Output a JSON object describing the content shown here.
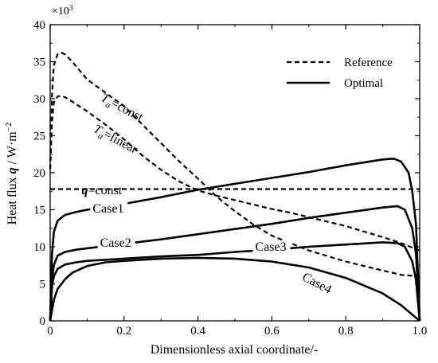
{
  "chart_data": {
    "type": "line",
    "xlabel": "Dimensionless axial coordinate/-",
    "ylabel_prefix": "Heat flux ",
    "ylabel_var": "q",
    "ylabel_suffix": " / W·m",
    "ylabel_exp": "−2",
    "y_multiplier_base": "×10",
    "y_multiplier_exp": "3",
    "xlim": [
      0,
      1
    ],
    "ylim": [
      0,
      40
    ],
    "x_ticks": [
      "0",
      "0.2",
      "0.4",
      "0.6",
      "0.8",
      "1.0"
    ],
    "y_ticks": [
      "0",
      "5",
      "10",
      "15",
      "20",
      "25",
      "30",
      "35",
      "40"
    ],
    "legend_position": "top-right",
    "legend": [
      {
        "label": "Reference",
        "style": "dashed"
      },
      {
        "label": "Optimal",
        "style": "solid"
      }
    ],
    "grid": false,
    "series": [
      {
        "name": "Ta=const",
        "style": "dashed",
        "label_parts": {
          "var": "T",
          "sub": "a",
          "rest": "=const"
        },
        "x": [
          0,
          0.005,
          0.01,
          0.02,
          0.03,
          0.04,
          0.06,
          0.1,
          0.15,
          0.2,
          0.25,
          0.3,
          0.35,
          0.4,
          0.45,
          0.5,
          0.55,
          0.6,
          0.7,
          0.8,
          0.9,
          0.95,
          1.0
        ],
        "y": [
          20.5,
          30.5,
          34.5,
          36,
          36.2,
          36,
          35,
          32.6,
          30.8,
          29,
          26.5,
          24,
          21.5,
          19.2,
          16.8,
          14.8,
          13,
          11.5,
          9.5,
          8,
          6.8,
          6.2,
          6
        ]
      },
      {
        "name": "Ta=linear",
        "style": "dashed",
        "label_parts": {
          "var": "T",
          "sub": "a",
          "rest": "=linear"
        },
        "x": [
          0,
          0.005,
          0.01,
          0.02,
          0.03,
          0.04,
          0.06,
          0.1,
          0.15,
          0.2,
          0.25,
          0.3,
          0.35,
          0.4,
          0.45,
          0.5,
          0.55,
          0.6,
          0.65,
          0.7,
          0.8,
          0.9,
          0.95,
          1.0
        ],
        "y": [
          20.5,
          27,
          29.5,
          30.3,
          30.4,
          30.2,
          29.6,
          28.3,
          26.5,
          24.5,
          22.3,
          20.4,
          18.8,
          17.6,
          16.9,
          16.3,
          15.7,
          15.1,
          14.6,
          14,
          12.8,
          11.3,
          10.5,
          9.5
        ]
      },
      {
        "name": "q=const",
        "style": "dashed",
        "label_parts": {
          "var": "q",
          "sub": "",
          "rest": "=const"
        },
        "x": [
          0,
          1
        ],
        "y": [
          17.8,
          17.8
        ]
      },
      {
        "name": "Case1",
        "style": "solid",
        "label_parts": {
          "var": "",
          "sub": "",
          "rest": "Case1"
        },
        "x": [
          0,
          0.005,
          0.01,
          0.02,
          0.04,
          0.07,
          0.1,
          0.2,
          0.3,
          0.4,
          0.5,
          0.6,
          0.7,
          0.8,
          0.9,
          0.93,
          0.95,
          0.97,
          0.98,
          0.99,
          1.0
        ],
        "y": [
          0,
          9,
          12,
          13.5,
          14.3,
          14.7,
          15,
          15.8,
          16.7,
          17.7,
          18.5,
          19.3,
          20.1,
          21,
          21.8,
          21.9,
          21.5,
          20,
          17.5,
          13,
          0
        ]
      },
      {
        "name": "Case2",
        "style": "solid",
        "label_parts": {
          "var": "",
          "sub": "",
          "rest": "Case2"
        },
        "x": [
          0,
          0.005,
          0.01,
          0.02,
          0.04,
          0.07,
          0.1,
          0.2,
          0.3,
          0.4,
          0.5,
          0.6,
          0.7,
          0.8,
          0.9,
          0.94,
          0.96,
          0.98,
          0.99,
          1.0
        ],
        "y": [
          0,
          5.5,
          7.5,
          8.8,
          9.3,
          9.6,
          9.8,
          10.4,
          11,
          11.7,
          12.4,
          13.1,
          13.9,
          14.6,
          15.3,
          15.5,
          15,
          12.5,
          9,
          0
        ]
      },
      {
        "name": "Case3",
        "style": "solid",
        "label_parts": {
          "var": "",
          "sub": "",
          "rest": "Case3"
        },
        "x": [
          0,
          0.005,
          0.01,
          0.02,
          0.04,
          0.07,
          0.1,
          0.2,
          0.3,
          0.4,
          0.5,
          0.6,
          0.7,
          0.8,
          0.9,
          0.94,
          0.96,
          0.98,
          0.99,
          1.0
        ],
        "y": [
          0,
          4.5,
          6,
          7,
          7.6,
          7.9,
          8.1,
          8.4,
          8.7,
          8.9,
          9.3,
          9.6,
          10,
          10.3,
          10.6,
          10.5,
          10,
          8,
          5.5,
          0
        ]
      },
      {
        "name": "Case4",
        "style": "solid",
        "label_parts": {
          "var": "",
          "sub": "",
          "rest": "Case4"
        },
        "x": [
          0,
          0.01,
          0.02,
          0.04,
          0.06,
          0.1,
          0.15,
          0.2,
          0.3,
          0.4,
          0.5,
          0.6,
          0.7,
          0.8,
          0.9,
          0.95,
          1.0
        ],
        "y": [
          0,
          2.8,
          4.3,
          5.6,
          6.5,
          7.4,
          7.9,
          8.1,
          8.4,
          8.5,
          8.4,
          8,
          7.2,
          5.8,
          3.7,
          2.1,
          0
        ]
      }
    ]
  }
}
